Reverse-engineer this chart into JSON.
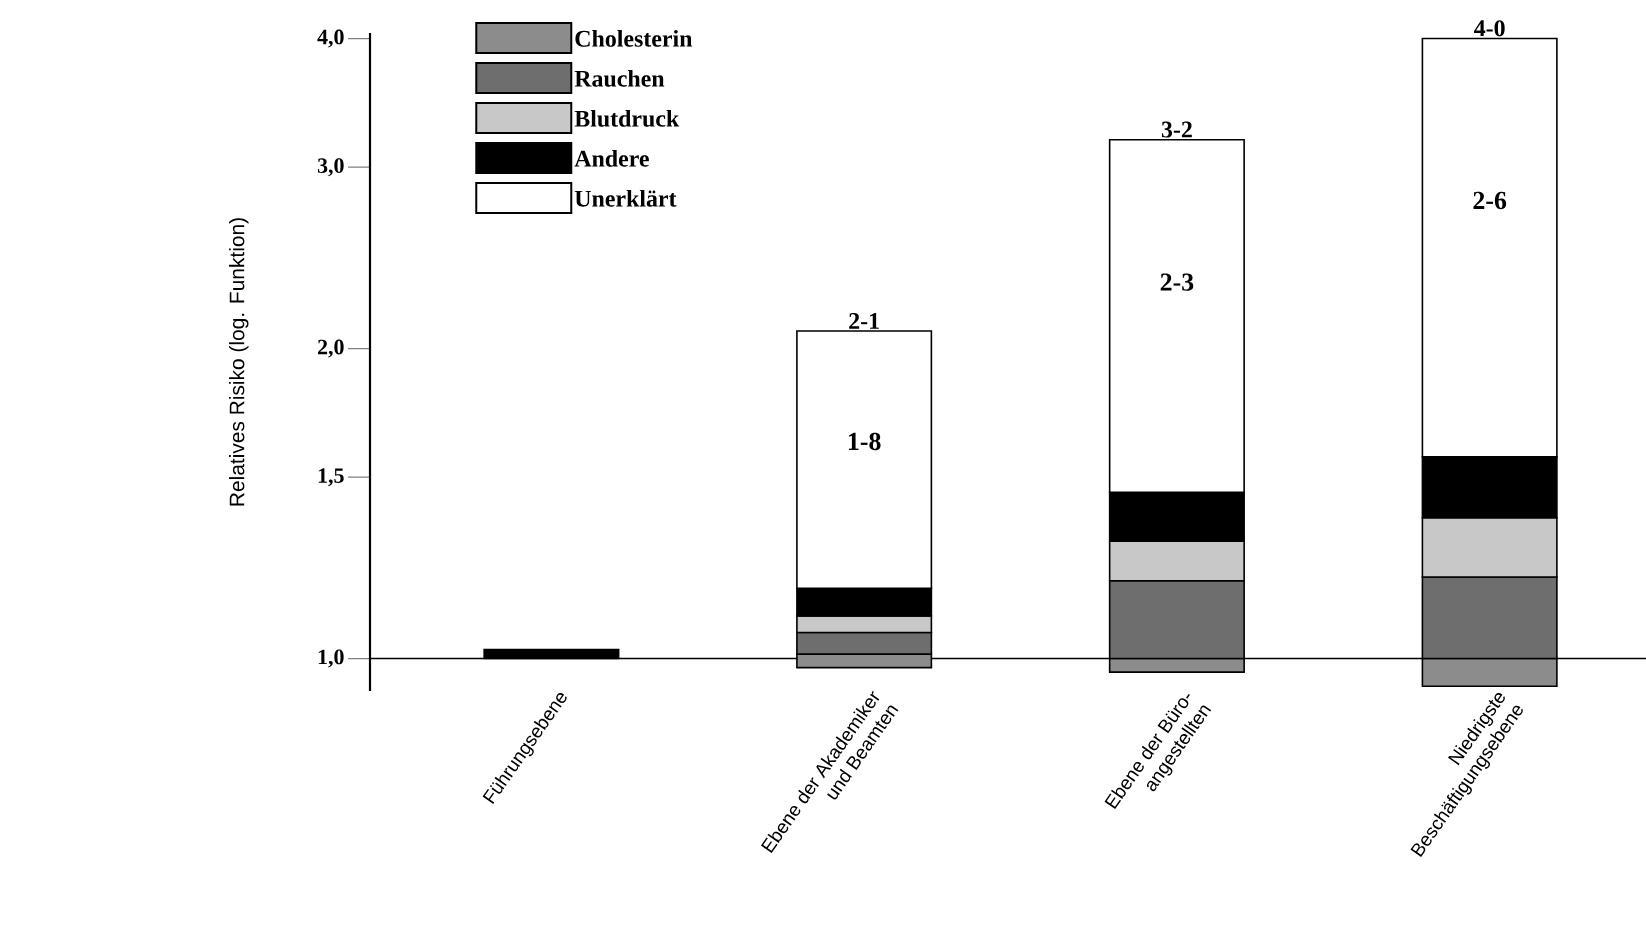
{
  "chart_data": {
    "type": "bar",
    "ylabel": "Relatives Risiko (log. Funktion)",
    "categories": [
      "Führungsebene",
      "Ebene der Akademiker und Beamten",
      "Ebene der Büro- angestellten",
      "Niedrigste Beschäftigungsebene"
    ],
    "log": "y",
    "series": [
      {
        "name": "Cholesterin",
        "color": "#8c8c8c",
        "base": [
          null,
          0.98,
          0.97,
          0.94
        ],
        "values": [
          null,
          0.03,
          0.03,
          0.06
        ]
      },
      {
        "name": "Rauchen",
        "color": "#6e6e6e",
        "base": [
          null,
          1.01,
          1.0,
          1.0
        ],
        "values": [
          null,
          0.05,
          0.19,
          0.2
        ]
      },
      {
        "name": "Blutdruck",
        "color": "#c8c8c8",
        "base": [
          null,
          1.06,
          1.19,
          1.2
        ],
        "values": [
          null,
          0.04,
          0.11,
          0.17
        ]
      },
      {
        "name": "Andere",
        "color": "#000000",
        "base": [
          1.0,
          1.1,
          1.3,
          1.37
        ],
        "values": [
          0.02,
          0.07,
          0.15,
          0.2
        ]
      },
      {
        "name": "Unerklärt",
        "color": "#ffffff",
        "base": [
          null,
          1.17,
          1.45,
          1.57
        ],
        "values": [
          null,
          0.91,
          1.74,
          2.43
        ],
        "value_labels": [
          null,
          "1-8",
          "2-3",
          "2-6"
        ]
      }
    ],
    "annotations": [
      {
        "text": "2-1",
        "x": "Ebene der Akademiker und Beamten",
        "y": 2.08
      },
      {
        "text": "3-2",
        "x": "Ebene der Büro- angestellten",
        "y": 3.19
      },
      {
        "text": "4-0",
        "x": "Niedrigste Beschäftigungsebene",
        "y": 4.0
      }
    ],
    "ylim": [
      0.93,
      4.05
    ],
    "yticks": [
      {
        "value": 1.0,
        "label": "1,0"
      },
      {
        "value": 1.5,
        "label": "1,5"
      },
      {
        "value": 2.0,
        "label": "2,0"
      },
      {
        "value": 3.0,
        "label": "3,0"
      },
      {
        "value": 4.0,
        "label": "4,0"
      }
    ],
    "legend": "top left"
  }
}
